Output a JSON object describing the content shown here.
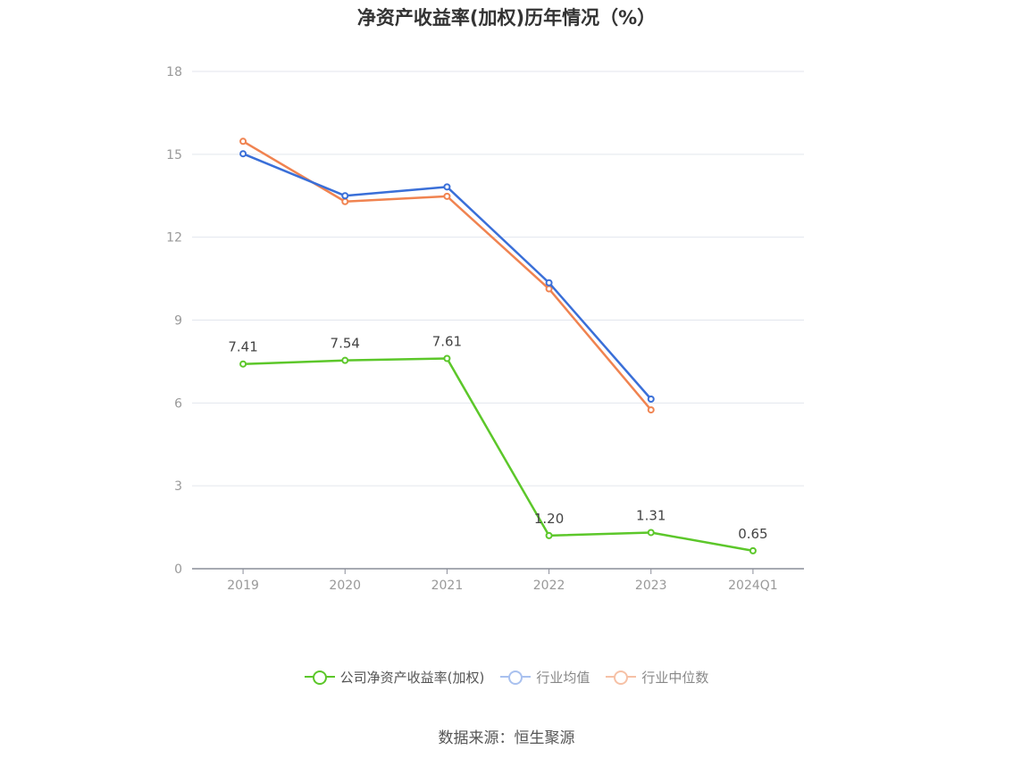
{
  "title": "净资产收益率(加权)历年情况（%）",
  "source": "数据来源：恒生聚源",
  "chart_data": {
    "type": "line",
    "title": "净资产收益率(加权)历年情况（%）",
    "categories": [
      "2019",
      "2020",
      "2021",
      "2022",
      "2023",
      "2024Q1"
    ],
    "ylim": [
      0,
      18
    ],
    "yticks": [
      0,
      3,
      6,
      9,
      12,
      15,
      18
    ],
    "grid": true,
    "legend_position": "bottom",
    "series": [
      {
        "name": "公司净资产收益率(加权)",
        "color": "#5cc72a",
        "values": [
          7.41,
          7.54,
          7.61,
          1.2,
          1.31,
          0.65
        ],
        "labels": [
          "7.41",
          "7.54",
          "7.61",
          "1.20",
          "1.31",
          "0.65"
        ]
      },
      {
        "name": "行业均值",
        "color": "#3a6fd8",
        "values": [
          15.02,
          13.5,
          13.82,
          10.35,
          6.14,
          null
        ]
      },
      {
        "name": "行业中位数",
        "color": "#f08350",
        "values": [
          15.47,
          13.29,
          13.48,
          10.13,
          5.75,
          null
        ]
      }
    ]
  }
}
